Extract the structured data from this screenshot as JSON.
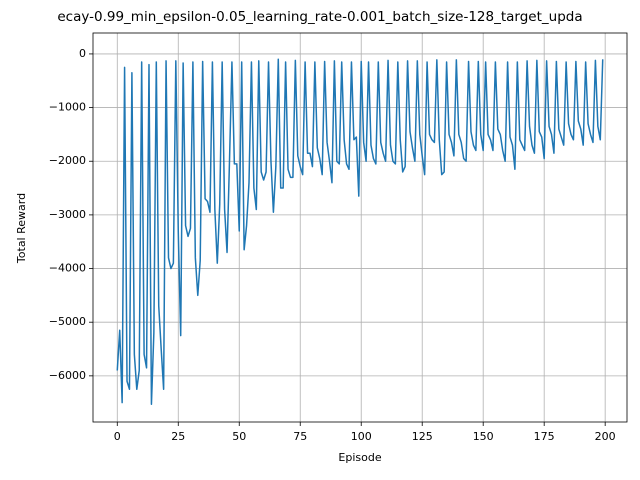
{
  "chart_data": {
    "type": "line",
    "title": "ecay-0.99_min_epsilon-0.05_learning_rate-0.001_batch_size-128_target_upda",
    "xlabel": "Episode",
    "ylabel": "Total Reward",
    "color": "#1f77b4",
    "grid": true,
    "x": [
      0,
      1,
      2,
      3,
      4,
      5,
      6,
      7,
      8,
      9,
      10,
      11,
      12,
      13,
      14,
      15,
      16,
      17,
      18,
      19,
      20,
      21,
      22,
      23,
      24,
      25,
      26,
      27,
      28,
      29,
      30,
      31,
      32,
      33,
      34,
      35,
      36,
      37,
      38,
      39,
      40,
      41,
      42,
      43,
      44,
      45,
      46,
      47,
      48,
      49,
      50,
      51,
      52,
      53,
      54,
      55,
      56,
      57,
      58,
      59,
      60,
      61,
      62,
      63,
      64,
      65,
      66,
      67,
      68,
      69,
      70,
      71,
      72,
      73,
      74,
      75,
      76,
      77,
      78,
      79,
      80,
      81,
      82,
      83,
      84,
      85,
      86,
      87,
      88,
      89,
      90,
      91,
      92,
      93,
      94,
      95,
      96,
      97,
      98,
      99,
      100,
      101,
      102,
      103,
      104,
      105,
      106,
      107,
      108,
      109,
      110,
      111,
      112,
      113,
      114,
      115,
      116,
      117,
      118,
      119,
      120,
      121,
      122,
      123,
      124,
      125,
      126,
      127,
      128,
      129,
      130,
      131,
      132,
      133,
      134,
      135,
      136,
      137,
      138,
      139,
      140,
      141,
      142,
      143,
      144,
      145,
      146,
      147,
      148,
      149,
      150,
      151,
      152,
      153,
      154,
      155,
      156,
      157,
      158,
      159,
      160,
      161,
      162,
      163,
      164,
      165,
      166,
      167,
      168,
      169,
      170,
      171,
      172,
      173,
      174,
      175,
      176,
      177,
      178,
      179,
      180,
      181,
      182,
      183,
      184,
      185,
      186,
      187,
      188,
      189,
      190,
      191,
      192,
      193,
      194,
      195,
      196,
      197,
      198,
      199
    ],
    "values": [
      -5900,
      -5150,
      -6500,
      -250,
      -6100,
      -6250,
      -350,
      -5600,
      -6250,
      -5900,
      -150,
      -5600,
      -5850,
      -200,
      -6530,
      -5200,
      -150,
      -4700,
      -5500,
      -6250,
      -130,
      -3800,
      -4000,
      -3900,
      -130,
      -3300,
      -5250,
      -170,
      -3200,
      -3400,
      -3250,
      -150,
      -3800,
      -4500,
      -3850,
      -140,
      -2700,
      -2750,
      -2950,
      -150,
      -2900,
      -3900,
      -2800,
      -150,
      -2900,
      -3700,
      -2000,
      -150,
      -2050,
      -2050,
      -3300,
      -150,
      -3650,
      -3200,
      -2400,
      -150,
      -2500,
      -2900,
      -130,
      -2200,
      -2350,
      -2200,
      -150,
      -2000,
      -2950,
      -2100,
      -100,
      -2500,
      -2500,
      -150,
      -2150,
      -2300,
      -2300,
      -120,
      -1900,
      -2100,
      -2250,
      -150,
      -1850,
      -1850,
      -2100,
      -150,
      -1750,
      -1950,
      -2250,
      -140,
      -1650,
      -2000,
      -2400,
      -130,
      -2000,
      -2050,
      -150,
      -1600,
      -2050,
      -2150,
      -150,
      -1600,
      -1550,
      -2650,
      -140,
      -1650,
      -2000,
      -150,
      -1700,
      -1950,
      -2050,
      -150,
      -1650,
      -1850,
      -2000,
      -120,
      -1700,
      -2000,
      -2050,
      -150,
      -1600,
      -2200,
      -2100,
      -130,
      -1450,
      -1750,
      -2000,
      -130,
      -1500,
      -1900,
      -2250,
      -150,
      -1500,
      -1600,
      -1650,
      -110,
      -1600,
      -2250,
      -2200,
      -150,
      -1500,
      -1650,
      -1900,
      -110,
      -1500,
      -1650,
      -1950,
      -2000,
      -140,
      -1450,
      -1700,
      -1800,
      -140,
      -1500,
      -1800,
      -150,
      -1500,
      -1600,
      -1800,
      -150,
      -1400,
      -1500,
      -1800,
      -2000,
      -150,
      -1550,
      -1700,
      -2150,
      -150,
      -1600,
      -1700,
      -1800,
      -130,
      -1350,
      -1700,
      -1850,
      -120,
      -1450,
      -1550,
      -1950,
      -130,
      -1350,
      -1500,
      -1850,
      -140,
      -1400,
      -1550,
      -1700,
      -150,
      -1300,
      -1500,
      -1600,
      -140,
      -1250,
      -1400,
      -1700,
      -150,
      -1300,
      -1500,
      -1650,
      -120,
      -1350,
      -1600,
      -100
    ],
    "xlim": [
      -9.95,
      208.95
    ],
    "ylim": [
      -6860,
      390
    ],
    "xticks": [
      0,
      25,
      50,
      75,
      100,
      125,
      150,
      175,
      200
    ],
    "yticks": [
      {
        "value": -6000,
        "label": "−6000"
      },
      {
        "value": -5000,
        "label": "−5000"
      },
      {
        "value": -4000,
        "label": "−4000"
      },
      {
        "value": -3000,
        "label": "−3000"
      },
      {
        "value": -2000,
        "label": "−2000"
      },
      {
        "value": -1000,
        "label": "−1000"
      },
      0
    ]
  }
}
